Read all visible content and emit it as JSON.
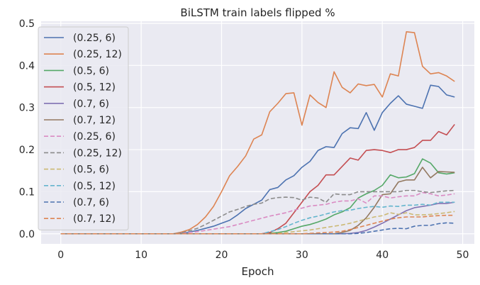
{
  "chart_data": {
    "type": "line",
    "title": "BiLSTM train labels flipped %",
    "xlabel": "Epoch",
    "ylabel": "",
    "xlim": [
      -2.45,
      51.45
    ],
    "ylim": [
      -0.024,
      0.505
    ],
    "xticks": [
      0,
      10,
      20,
      30,
      40,
      50
    ],
    "yticks": [
      0.0,
      0.1,
      0.2,
      0.3,
      0.4,
      0.5
    ],
    "grid": true,
    "legend_position": "top-left",
    "x": [
      0,
      1,
      2,
      3,
      4,
      5,
      6,
      7,
      8,
      9,
      10,
      11,
      12,
      13,
      14,
      15,
      16,
      17,
      18,
      19,
      20,
      21,
      22,
      23,
      24,
      25,
      26,
      27,
      28,
      29,
      30,
      31,
      32,
      33,
      34,
      35,
      36,
      37,
      38,
      39,
      40,
      41,
      42,
      43,
      44,
      45,
      46,
      47,
      48,
      49
    ],
    "series": [
      {
        "name": "(0.25, 6)",
        "color": "#4c72b0",
        "dashed": false,
        "values": [
          0,
          0,
          0,
          0,
          0,
          0,
          0,
          0,
          0,
          0,
          0,
          0,
          0,
          0,
          0,
          0.001,
          0.004,
          0.008,
          0.013,
          0.018,
          0.025,
          0.032,
          0.045,
          0.06,
          0.07,
          0.08,
          0.105,
          0.11,
          0.128,
          0.138,
          0.158,
          0.172,
          0.198,
          0.207,
          0.205,
          0.238,
          0.252,
          0.25,
          0.288,
          0.246,
          0.288,
          0.31,
          0.328,
          0.308,
          0.303,
          0.298,
          0.353,
          0.35,
          0.33,
          0.325
        ]
      },
      {
        "name": "(0.25, 12)",
        "color": "#dd8452",
        "dashed": false,
        "values": [
          0,
          0,
          0,
          0,
          0,
          0,
          0,
          0,
          0,
          0,
          0,
          0,
          0,
          0,
          0,
          0.004,
          0.01,
          0.022,
          0.04,
          0.065,
          0.1,
          0.138,
          0.16,
          0.185,
          0.225,
          0.235,
          0.29,
          0.31,
          0.333,
          0.335,
          0.258,
          0.33,
          0.312,
          0.3,
          0.385,
          0.348,
          0.335,
          0.356,
          0.352,
          0.355,
          0.325,
          0.38,
          0.375,
          0.48,
          0.478,
          0.398,
          0.38,
          0.383,
          0.375,
          0.362
        ]
      },
      {
        "name": "(0.5, 6)",
        "color": "#55a868",
        "dashed": false,
        "values": [
          0,
          0,
          0,
          0,
          0,
          0,
          0,
          0,
          0,
          0,
          0,
          0,
          0,
          0,
          0,
          0,
          0,
          0,
          0,
          0,
          0,
          0,
          0,
          0,
          0,
          0,
          0.001,
          0.003,
          0.006,
          0.012,
          0.018,
          0.022,
          0.028,
          0.035,
          0.045,
          0.052,
          0.062,
          0.085,
          0.095,
          0.103,
          0.115,
          0.14,
          0.133,
          0.135,
          0.143,
          0.178,
          0.168,
          0.145,
          0.142,
          0.145
        ]
      },
      {
        "name": "(0.5, 12)",
        "color": "#c44e52",
        "dashed": false,
        "values": [
          0,
          0,
          0,
          0,
          0,
          0,
          0,
          0,
          0,
          0,
          0,
          0,
          0,
          0,
          0,
          0,
          0,
          0,
          0,
          0,
          0,
          0,
          0,
          0,
          0,
          0,
          0.003,
          0.012,
          0.025,
          0.05,
          0.075,
          0.1,
          0.115,
          0.14,
          0.14,
          0.16,
          0.18,
          0.175,
          0.198,
          0.2,
          0.198,
          0.193,
          0.2,
          0.2,
          0.205,
          0.222,
          0.222,
          0.243,
          0.235,
          0.26
        ]
      },
      {
        "name": "(0.7, 6)",
        "color": "#8172b3",
        "dashed": false,
        "values": [
          0,
          0,
          0,
          0,
          0,
          0,
          0,
          0,
          0,
          0,
          0,
          0,
          0,
          0,
          0,
          0,
          0,
          0,
          0,
          0,
          0,
          0,
          0,
          0,
          0,
          0,
          0,
          0,
          0,
          0,
          0,
          0,
          0,
          0,
          0,
          0,
          0.001,
          0.003,
          0.008,
          0.016,
          0.025,
          0.035,
          0.045,
          0.055,
          0.062,
          0.065,
          0.068,
          0.072,
          0.072,
          0.075
        ]
      },
      {
        "name": "(0.7, 12)",
        "color": "#937860",
        "dashed": false,
        "values": [
          0,
          0,
          0,
          0,
          0,
          0,
          0,
          0,
          0,
          0,
          0,
          0,
          0,
          0,
          0,
          0,
          0,
          0,
          0,
          0,
          0,
          0,
          0,
          0,
          0,
          0,
          0,
          0,
          0,
          0,
          0,
          0,
          0,
          0,
          0,
          0.003,
          0.008,
          0.02,
          0.038,
          0.063,
          0.093,
          0.095,
          0.123,
          0.128,
          0.128,
          0.158,
          0.133,
          0.148,
          0.147,
          0.146
        ]
      },
      {
        "name": "(0.25, 6)",
        "color": "#da8bc3",
        "dashed": true,
        "values": [
          0,
          0,
          0,
          0,
          0,
          0,
          0,
          0,
          0,
          0,
          0,
          0,
          0,
          0,
          0,
          0.001,
          0.003,
          0.005,
          0.008,
          0.011,
          0.014,
          0.017,
          0.022,
          0.027,
          0.032,
          0.037,
          0.042,
          0.046,
          0.05,
          0.056,
          0.061,
          0.066,
          0.068,
          0.07,
          0.075,
          0.078,
          0.078,
          0.083,
          0.073,
          0.09,
          0.09,
          0.085,
          0.088,
          0.09,
          0.09,
          0.098,
          0.095,
          0.09,
          0.092,
          0.095
        ]
      },
      {
        "name": "(0.25, 12)",
        "color": "#8c8c8c",
        "dashed": true,
        "values": [
          0,
          0,
          0,
          0,
          0,
          0,
          0,
          0,
          0,
          0,
          0,
          0,
          0,
          0,
          0,
          0.002,
          0.007,
          0.013,
          0.022,
          0.032,
          0.042,
          0.052,
          0.058,
          0.065,
          0.07,
          0.073,
          0.083,
          0.086,
          0.087,
          0.086,
          0.08,
          0.087,
          0.085,
          0.075,
          0.095,
          0.093,
          0.093,
          0.1,
          0.1,
          0.1,
          0.1,
          0.1,
          0.1,
          0.103,
          0.103,
          0.1,
          0.098,
          0.1,
          0.102,
          0.103
        ]
      },
      {
        "name": "(0.5, 6)",
        "color": "#ccb974",
        "dashed": true,
        "values": [
          0,
          0,
          0,
          0,
          0,
          0,
          0,
          0,
          0,
          0,
          0,
          0,
          0,
          0,
          0,
          0,
          0,
          0,
          0,
          0,
          0,
          0,
          0,
          0,
          0,
          0,
          0,
          0.001,
          0.003,
          0.005,
          0.007,
          0.009,
          0.012,
          0.015,
          0.018,
          0.021,
          0.025,
          0.03,
          0.035,
          0.04,
          0.043,
          0.05,
          0.046,
          0.05,
          0.045,
          0.045,
          0.046,
          0.048,
          0.05,
          0.053
        ]
      },
      {
        "name": "(0.5, 12)",
        "color": "#64b5cd",
        "dashed": true,
        "values": [
          0,
          0,
          0,
          0,
          0,
          0,
          0,
          0,
          0,
          0,
          0,
          0,
          0,
          0,
          0,
          0,
          0,
          0,
          0,
          0,
          0,
          0,
          0,
          0,
          0,
          0,
          0.005,
          0.01,
          0.017,
          0.025,
          0.032,
          0.038,
          0.042,
          0.047,
          0.052,
          0.055,
          0.056,
          0.06,
          0.063,
          0.065,
          0.063,
          0.066,
          0.065,
          0.068,
          0.068,
          0.07,
          0.068,
          0.075,
          0.075,
          0.075
        ]
      },
      {
        "name": "(0.7, 6)",
        "color": "#4c72b0",
        "dashed": true,
        "values": [
          0,
          0,
          0,
          0,
          0,
          0,
          0,
          0,
          0,
          0,
          0,
          0,
          0,
          0,
          0,
          0,
          0,
          0,
          0,
          0,
          0,
          0,
          0,
          0,
          0,
          0,
          0,
          0,
          0,
          0,
          0,
          0,
          0,
          0,
          0,
          0,
          0,
          0.001,
          0.003,
          0.006,
          0.009,
          0.012,
          0.013,
          0.012,
          0.018,
          0.02,
          0.02,
          0.024,
          0.026,
          0.025
        ]
      },
      {
        "name": "(0.7, 12)",
        "color": "#dd8452",
        "dashed": true,
        "values": [
          0,
          0,
          0,
          0,
          0,
          0,
          0,
          0,
          0,
          0,
          0,
          0,
          0,
          0,
          0,
          0,
          0,
          0,
          0,
          0,
          0,
          0,
          0,
          0,
          0,
          0,
          0,
          0,
          0,
          0,
          0,
          0.001,
          0.002,
          0.003,
          0.004,
          0.006,
          0.01,
          0.015,
          0.02,
          0.025,
          0.03,
          0.035,
          0.038,
          0.04,
          0.04,
          0.04,
          0.042,
          0.043,
          0.044,
          0.044
        ]
      }
    ]
  }
}
